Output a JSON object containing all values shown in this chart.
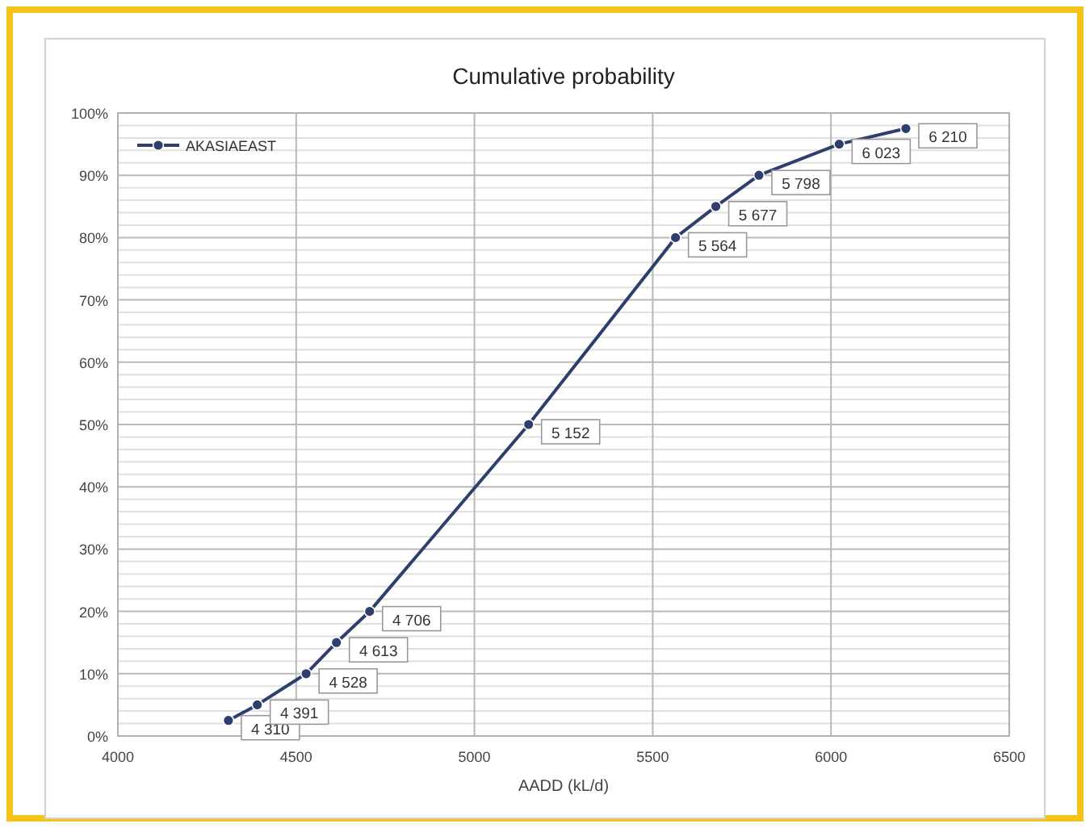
{
  "chart_data": {
    "type": "line",
    "title": "Cumulative probability",
    "xlabel": "AADD (kL/d)",
    "x": [
      4310,
      4391,
      4528,
      4613,
      4706,
      5152,
      5564,
      5677,
      5798,
      6023,
      6210
    ],
    "series": [
      {
        "name": "AKASIAEAST",
        "color": "#2e3f6e",
        "values": [
          2.5,
          5,
          10,
          15,
          20,
          50,
          80,
          85,
          90,
          95,
          97.5
        ]
      }
    ],
    "annotations": [
      {
        "text": "4 310",
        "x": 4310,
        "y": 2.5
      },
      {
        "text": "4 391",
        "x": 4391,
        "y": 5
      },
      {
        "text": "4 528",
        "x": 4528,
        "y": 10
      },
      {
        "text": "4 613",
        "x": 4613,
        "y": 15
      },
      {
        "text": "4 706",
        "x": 4706,
        "y": 20
      },
      {
        "text": "5 152",
        "x": 5152,
        "y": 50
      },
      {
        "text": "5 564",
        "x": 5564,
        "y": 80
      },
      {
        "text": "5 677",
        "x": 5677,
        "y": 85
      },
      {
        "text": "5 798",
        "x": 5798,
        "y": 90
      },
      {
        "text": "6 023",
        "x": 6023,
        "y": 95
      },
      {
        "text": "6 210",
        "x": 6210,
        "y": 97.5
      }
    ],
    "xlim": [
      4000,
      6500
    ],
    "xticks": [
      4000,
      4500,
      5000,
      5500,
      6000,
      6500
    ],
    "ylim": [
      0,
      100
    ],
    "yticks": [
      {
        "value": 0,
        "label": "0%"
      },
      {
        "value": 2,
        "label": null
      },
      {
        "value": 4,
        "label": null
      },
      {
        "value": 6,
        "label": null
      },
      {
        "value": 8,
        "label": null
      },
      {
        "value": 10,
        "label": "10%"
      },
      {
        "value": 12,
        "label": null
      },
      {
        "value": 14,
        "label": null
      },
      {
        "value": 16,
        "label": null
      },
      {
        "value": 18,
        "label": null
      },
      {
        "value": 20,
        "label": "20%"
      },
      {
        "value": 22,
        "label": null
      },
      {
        "value": 24,
        "label": null
      },
      {
        "value": 26,
        "label": null
      },
      {
        "value": 28,
        "label": null
      },
      {
        "value": 30,
        "label": "30%"
      },
      {
        "value": 32,
        "label": null
      },
      {
        "value": 34,
        "label": null
      },
      {
        "value": 36,
        "label": null
      },
      {
        "value": 38,
        "label": null
      },
      {
        "value": 40,
        "label": "40%"
      },
      {
        "value": 42,
        "label": null
      },
      {
        "value": 44,
        "label": null
      },
      {
        "value": 46,
        "label": null
      },
      {
        "value": 48,
        "label": null
      },
      {
        "value": 50,
        "label": "50%"
      },
      {
        "value": 52,
        "label": null
      },
      {
        "value": 54,
        "label": null
      },
      {
        "value": 56,
        "label": null
      },
      {
        "value": 58,
        "label": null
      },
      {
        "value": 60,
        "label": "60%"
      },
      {
        "value": 62,
        "label": null
      },
      {
        "value": 64,
        "label": null
      },
      {
        "value": 66,
        "label": null
      },
      {
        "value": 68,
        "label": null
      },
      {
        "value": 70,
        "label": "70%"
      },
      {
        "value": 72,
        "label": null
      },
      {
        "value": 74,
        "label": null
      },
      {
        "value": 76,
        "label": null
      },
      {
        "value": 78,
        "label": null
      },
      {
        "value": 80,
        "label": "80%"
      },
      {
        "value": 82,
        "label": null
      },
      {
        "value": 84,
        "label": null
      },
      {
        "value": 86,
        "label": null
      },
      {
        "value": 88,
        "label": null
      },
      {
        "value": 90,
        "label": "90%"
      },
      {
        "value": 92,
        "label": null
      },
      {
        "value": 94,
        "label": null
      },
      {
        "value": 96,
        "label": null
      },
      {
        "value": 98,
        "label": null
      },
      {
        "value": 100,
        "label": "100%"
      }
    ],
    "grid": true,
    "legend": "top left",
    "marker": "circle",
    "line_style": "solid"
  }
}
